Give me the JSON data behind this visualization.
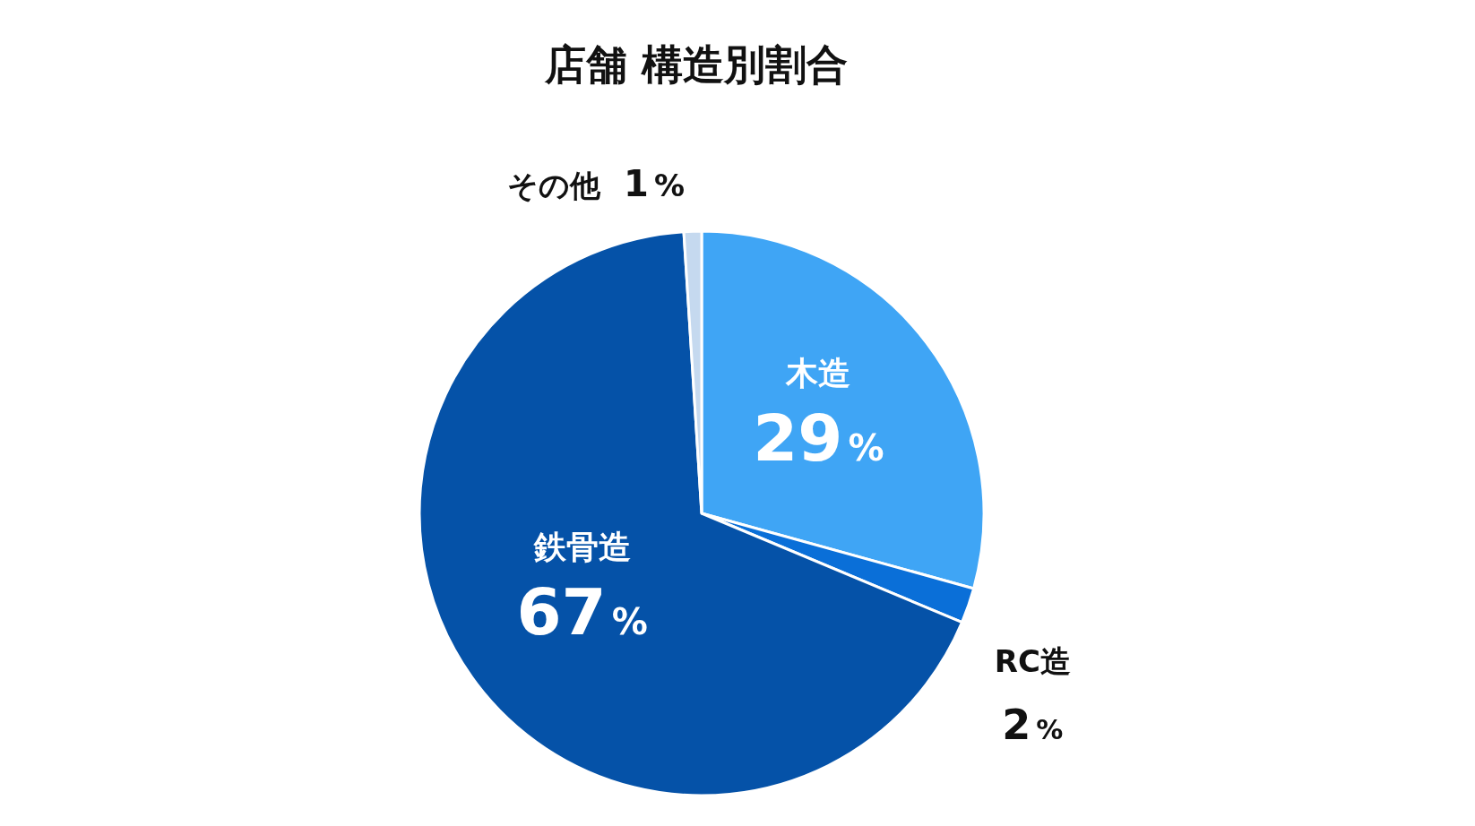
{
  "chart_data": {
    "type": "pie",
    "title": "店舗 構造別割合",
    "categories": [
      "木造",
      "RC造",
      "鉄骨造",
      "その他"
    ],
    "values": [
      29,
      2,
      67,
      1
    ],
    "value_labels": [
      "29%",
      "2%",
      "67%",
      "1%"
    ],
    "colors": [
      "#3fa5f5",
      "#0a6fd8",
      "#0552a8",
      "#c5d9ef"
    ],
    "legend": false
  }
}
